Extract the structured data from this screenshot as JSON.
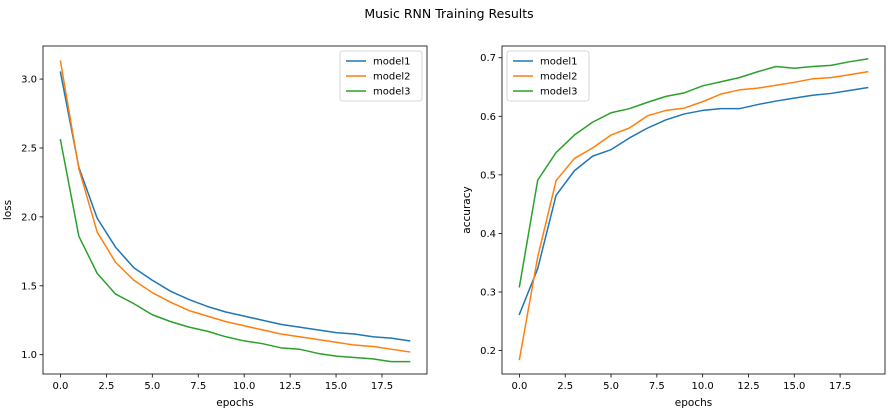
{
  "figure_title": "Music RNN Training Results",
  "colors": {
    "model1": "#1f77b4",
    "model2": "#ff7f0e",
    "model3": "#2ca02c"
  },
  "chart_data": [
    {
      "type": "line",
      "xlabel": "epochs",
      "ylabel": "loss",
      "xlim": [
        -0.95,
        19.95
      ],
      "ylim": [
        0.86,
        3.24
      ],
      "xticks": [
        0.0,
        2.5,
        5.0,
        7.5,
        10.0,
        12.5,
        15.0,
        17.5
      ],
      "yticks": [
        1.0,
        1.5,
        2.0,
        2.5,
        3.0
      ],
      "xtick_labels": [
        "0.0",
        "2.5",
        "5.0",
        "7.5",
        "10.0",
        "12.5",
        "15.0",
        "17.5"
      ],
      "ytick_labels": [
        "1.0",
        "1.5",
        "2.0",
        "2.5",
        "3.0"
      ],
      "legend_position": "top-right",
      "grid": false,
      "x": [
        0,
        1,
        2,
        3,
        4,
        5,
        6,
        7,
        8,
        9,
        10,
        11,
        12,
        13,
        14,
        15,
        16,
        17,
        18,
        19
      ],
      "series": [
        {
          "name": "model1",
          "values": [
            3.05,
            2.36,
            1.99,
            1.78,
            1.63,
            1.54,
            1.46,
            1.4,
            1.35,
            1.31,
            1.28,
            1.25,
            1.22,
            1.2,
            1.18,
            1.16,
            1.15,
            1.13,
            1.12,
            1.1
          ]
        },
        {
          "name": "model2",
          "values": [
            3.13,
            2.35,
            1.89,
            1.67,
            1.54,
            1.45,
            1.38,
            1.32,
            1.28,
            1.24,
            1.21,
            1.18,
            1.15,
            1.13,
            1.11,
            1.09,
            1.07,
            1.06,
            1.04,
            1.02
          ]
        },
        {
          "name": "model3",
          "values": [
            2.56,
            1.86,
            1.59,
            1.44,
            1.37,
            1.29,
            1.24,
            1.2,
            1.17,
            1.13,
            1.1,
            1.08,
            1.05,
            1.04,
            1.01,
            0.99,
            0.98,
            0.97,
            0.95,
            0.95
          ]
        }
      ]
    },
    {
      "type": "line",
      "xlabel": "epochs",
      "ylabel": "accuracy",
      "xlim": [
        -0.95,
        19.95
      ],
      "ylim": [
        0.16,
        0.72
      ],
      "xticks": [
        0.0,
        2.5,
        5.0,
        7.5,
        10.0,
        12.5,
        15.0,
        17.5
      ],
      "yticks": [
        0.2,
        0.3,
        0.4,
        0.5,
        0.6,
        0.7
      ],
      "xtick_labels": [
        "0.0",
        "2.5",
        "5.0",
        "7.5",
        "10.0",
        "12.5",
        "15.0",
        "17.5"
      ],
      "ytick_labels": [
        "0.2",
        "0.3",
        "0.4",
        "0.5",
        "0.6",
        "0.7"
      ],
      "legend_position": "top-left",
      "grid": false,
      "x": [
        0,
        1,
        2,
        3,
        4,
        5,
        6,
        7,
        8,
        9,
        10,
        11,
        12,
        13,
        14,
        15,
        16,
        17,
        18,
        19
      ],
      "series": [
        {
          "name": "model1",
          "values": [
            0.262,
            0.34,
            0.465,
            0.507,
            0.532,
            0.543,
            0.563,
            0.58,
            0.594,
            0.604,
            0.61,
            0.613,
            0.613,
            0.62,
            0.626,
            0.631,
            0.636,
            0.639,
            0.644,
            0.649
          ]
        },
        {
          "name": "model2",
          "values": [
            0.185,
            0.36,
            0.49,
            0.528,
            0.546,
            0.568,
            0.58,
            0.601,
            0.61,
            0.614,
            0.625,
            0.638,
            0.645,
            0.648,
            0.653,
            0.658,
            0.664,
            0.666,
            0.671,
            0.676
          ]
        },
        {
          "name": "model3",
          "values": [
            0.309,
            0.491,
            0.538,
            0.568,
            0.59,
            0.606,
            0.613,
            0.624,
            0.634,
            0.64,
            0.652,
            0.659,
            0.666,
            0.676,
            0.685,
            0.682,
            0.685,
            0.687,
            0.693,
            0.698
          ]
        }
      ]
    }
  ]
}
